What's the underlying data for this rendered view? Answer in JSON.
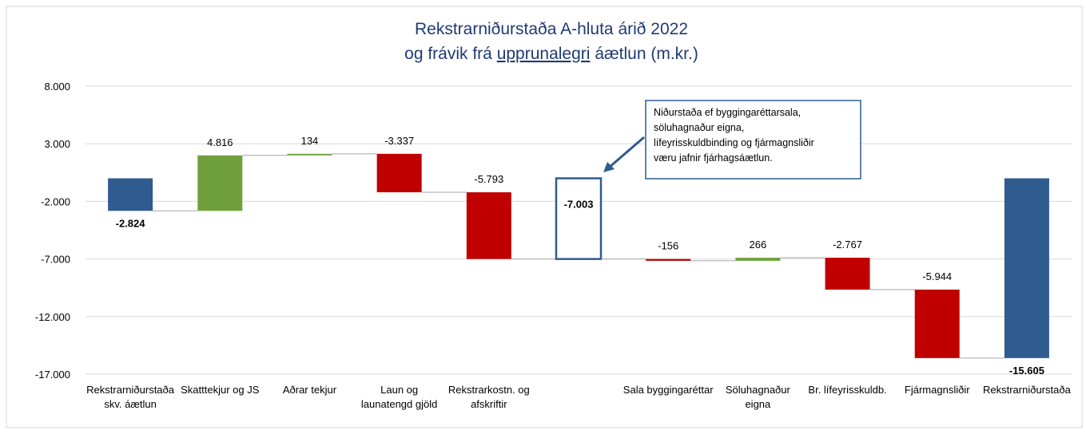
{
  "chart_data": {
    "type": "waterfall",
    "title": "Rekstrarniðurstaða A-hluta árið 2022",
    "subtitle_parts": [
      "og frávik frá",
      "upprunalegri",
      "áætlun (m.kr.)"
    ],
    "categories": [
      [
        "Rekstrarniðurstaða",
        "skv. áætlun"
      ],
      [
        "Skatttekjur og JS"
      ],
      [
        "Aðrar tekjur"
      ],
      [
        "Laun og",
        "launatengd gjöld"
      ],
      [
        "Rekstrarkostn. og",
        "afskriftir"
      ],
      null,
      [
        "Sala byggingaréttar"
      ],
      [
        "Söluhagnaður",
        "eigna"
      ],
      [
        "Br. lífeyrisskuldb."
      ],
      [
        "Fjármagnsliðir"
      ],
      [
        "Rekstrarniðurstaða"
      ]
    ],
    "values": [
      -2824,
      4816,
      134,
      -3337,
      -5793,
      -7003,
      -156,
      266,
      -2767,
      -5944,
      -15605
    ],
    "value_labels": [
      "-2.824",
      "4.816",
      "134",
      "-3.337",
      "-5.793",
      "-7.003",
      "-156",
      "266",
      "-2.767",
      "-5.944",
      "-15.605"
    ],
    "measures": [
      "total",
      "relative",
      "relative",
      "relative",
      "relative",
      "subtotal",
      "relative",
      "relative",
      "relative",
      "relative",
      "total"
    ],
    "colors": [
      "#2f5b8f",
      "#70a03c",
      "#70a03c",
      "#c00000",
      "#c00000",
      "#2f5b8f",
      "#c00000",
      "#70a03c",
      "#c00000",
      "#c00000",
      "#2f5b8f"
    ],
    "ylim": [
      -17000,
      8000
    ],
    "yticks": [
      {
        "value": 8000,
        "label": "8.000"
      },
      {
        "value": 3000,
        "label": "3.000"
      },
      {
        "value": -2000,
        "label": "-2.000"
      },
      {
        "value": -7000,
        "label": "-7.000"
      },
      {
        "value": -12000,
        "label": "-12.000"
      },
      {
        "value": -17000,
        "label": "-17.000"
      }
    ],
    "grid": true,
    "annotation": [
      "Niðurstaða ef byggingaréttarsala,",
      "söluhagnaður eigna,",
      "lífeyrisskuldbinding og fjármagnsliðir",
      "væru jafnir fjárhagsáætlun."
    ]
  }
}
